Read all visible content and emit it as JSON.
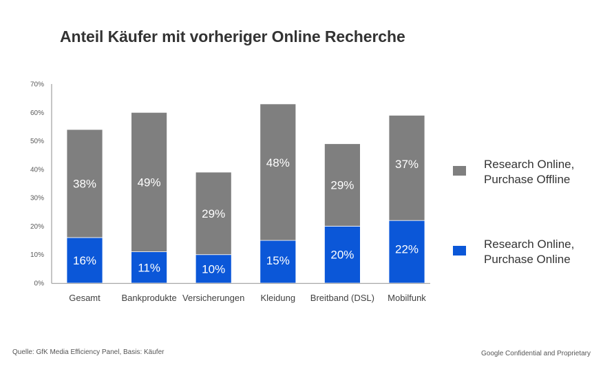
{
  "chart_data": {
    "type": "bar",
    "stacked": true,
    "title": "Anteil Käufer mit vorheriger Online Recherche",
    "xlabel": "",
    "ylabel": "",
    "ylim": [
      0,
      70
    ],
    "yticks": [
      0,
      10,
      20,
      30,
      40,
      50,
      60,
      70
    ],
    "ytick_labels": [
      "0%",
      "10%",
      "20%",
      "30%",
      "40%",
      "50%",
      "60%",
      "70%"
    ],
    "grid": false,
    "legend_position": "right",
    "categories": [
      "Gesamt",
      "Bankprodukte",
      "Versicherungen",
      "Kleidung",
      "Breitband (DSL)",
      "Mobilfunk"
    ],
    "series": [
      {
        "name": "Research Online, Purchase Online",
        "color": "#0b57d8",
        "values": [
          16,
          11,
          10,
          15,
          20,
          22
        ],
        "labels": [
          "16%",
          "11%",
          "10%",
          "15%",
          "20%",
          "22%"
        ]
      },
      {
        "name": "Research Online, Purchase Offline",
        "color": "#7f7f7f",
        "values": [
          38,
          49,
          29,
          48,
          29,
          37
        ],
        "labels": [
          "38%",
          "49%",
          "29%",
          "48%",
          "29%",
          "37%"
        ]
      }
    ]
  },
  "legend": {
    "items": [
      {
        "text": "Research Online,\nPurchase Offline",
        "color": "#7f7f7f"
      },
      {
        "text": "Research Online,\nPurchase Online",
        "color": "#0b57d8"
      }
    ]
  },
  "footer": {
    "source": "Quelle: GfK Media Efficiency Panel, Basis: Käufer",
    "confidential": "Google Confidential and Proprietary"
  },
  "colors": {
    "axis": "#a6a6a6",
    "tick_label": "#595959",
    "category_label": "#404040",
    "data_label": "#ffffff"
  }
}
